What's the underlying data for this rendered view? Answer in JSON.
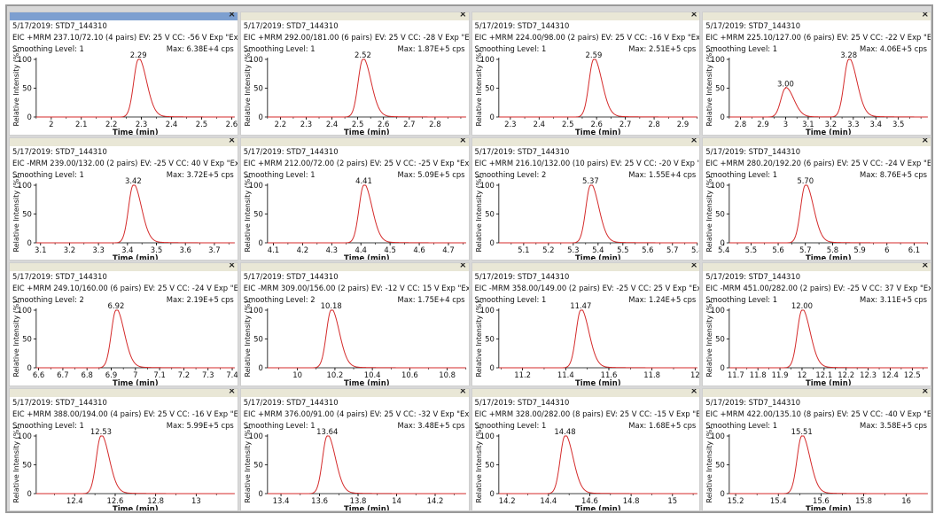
{
  "colors": {
    "trace": "#d42a2a",
    "active_titlebar": "#7d9fd0",
    "titlebar": "#e9e7d6",
    "axis": "#000000"
  },
  "close_icon": "×",
  "chart_data": [
    {
      "type": "line",
      "date_line": "5/17/2019: STD7_144310",
      "eic_line": "EIC +MRM 237.10/72.10 (4 pairs) EV: 25 V CC: -56 V Exp \"Experiment 5...",
      "smoothing": "Smoothing Level: 1",
      "max": "Max: 6.38E+4 cps",
      "xlabel": "Time (min)",
      "ylabel": "Relative Intensity (%)",
      "xlim": [
        1.95,
        2.61
      ],
      "ylim": [
        0,
        100
      ],
      "xticks": [
        "2",
        "2.1",
        "2.2",
        "2.3",
        "2.4",
        "2.5",
        "2.6"
      ],
      "yticks": [
        "0",
        "50",
        "100"
      ],
      "peaks": [
        {
          "rt": 2.29,
          "height": 100,
          "label": "2.29"
        }
      ],
      "active": true
    },
    {
      "type": "line",
      "date_line": "5/17/2019: STD7_144310",
      "eic_line": "EIC +MRM 292.00/181.00 (6 pairs) EV: 25 V CC: -28 V Exp \"Experiment...",
      "smoothing": "Smoothing Level: 1",
      "max": "Max: 1.87E+5 cps",
      "xlabel": "Time (min)",
      "ylabel": "Relative Intensity (%)",
      "xlim": [
        2.15,
        2.92
      ],
      "ylim": [
        0,
        100
      ],
      "xticks": [
        "2.2",
        "2.3",
        "2.4",
        "2.5",
        "2.6",
        "2.7",
        "2.8"
      ],
      "yticks": [
        "0",
        "50",
        "100"
      ],
      "peaks": [
        {
          "rt": 2.52,
          "height": 100,
          "label": "2.52"
        }
      ]
    },
    {
      "type": "line",
      "date_line": "5/17/2019: STD7_144310",
      "eic_line": "EIC +MRM 224.00/98.00 (2 pairs) EV: 25 V CC: -16 V Exp \"Experiment 8...",
      "smoothing": "Smoothing Level: 1",
      "max": "Max: 2.51E+5 cps",
      "xlabel": "Time (min)",
      "ylabel": "Relative Intensity (%)",
      "xlim": [
        2.26,
        2.95
      ],
      "ylim": [
        0,
        100
      ],
      "xticks": [
        "2.3",
        "2.4",
        "2.5",
        "2.6",
        "2.7",
        "2.8",
        "2.9"
      ],
      "yticks": [
        "0",
        "50",
        "100"
      ],
      "peaks": [
        {
          "rt": 2.59,
          "height": 100,
          "label": "2.59"
        }
      ]
    },
    {
      "type": "line",
      "date_line": "5/17/2019: STD7_144310",
      "eic_line": "EIC +MRM 225.10/127.00 (6 pairs) EV: 25 V CC: -22 V Exp \"Experiment...",
      "smoothing": "Smoothing Level: 1",
      "max": "Max: 4.06E+5 cps",
      "xlabel": "Time (min)",
      "ylabel": "Relative Intensity (%)",
      "xlim": [
        2.75,
        3.63
      ],
      "ylim": [
        0,
        100
      ],
      "xticks": [
        "2.8",
        "2.9",
        "3",
        "3.1",
        "3.2",
        "3.3",
        "3.4",
        "3.5"
      ],
      "yticks": [
        "0",
        "50",
        "100"
      ],
      "peaks": [
        {
          "rt": 3.0,
          "height": 50,
          "label": "3.00"
        },
        {
          "rt": 3.28,
          "height": 100,
          "label": "3.28"
        }
      ]
    },
    {
      "type": "line",
      "date_line": "5/17/2019: STD7_144310",
      "eic_line": "EIC -MRM 239.00/132.00 (2 pairs) EV: -25 V CC: 40 V Exp \"Experiment...",
      "smoothing": "Smoothing Level: 1",
      "max": "Max: 3.72E+5 cps",
      "xlabel": "Time (min)",
      "ylabel": "Relative Intensity (%)",
      "xlim": [
        3.085,
        3.77
      ],
      "ylim": [
        0,
        100
      ],
      "xticks": [
        "3.1",
        "3.2",
        "3.3",
        "3.4",
        "3.5",
        "3.6",
        "3.7"
      ],
      "yticks": [
        "0",
        "50",
        "100"
      ],
      "peaks": [
        {
          "rt": 3.42,
          "height": 100,
          "label": "3.42"
        }
      ]
    },
    {
      "type": "line",
      "date_line": "5/17/2019: STD7_144310",
      "eic_line": "EIC +MRM 212.00/72.00 (2 pairs) EV: 25 V CC: -25 V Exp \"Experiment 2...",
      "smoothing": "Smoothing Level: 1",
      "max": "Max: 5.09E+5 cps",
      "xlabel": "Time (min)",
      "ylabel": "Relative Intensity (%)",
      "xlim": [
        4.08,
        4.76
      ],
      "ylim": [
        0,
        100
      ],
      "xticks": [
        "4.1",
        "4.2",
        "4.3",
        "4.4",
        "4.5",
        "4.6",
        "4.7"
      ],
      "yticks": [
        "0",
        "50",
        "100"
      ],
      "peaks": [
        {
          "rt": 4.41,
          "height": 100,
          "label": "4.41"
        }
      ]
    },
    {
      "type": "line",
      "date_line": "5/17/2019: STD7_144310",
      "eic_line": "EIC +MRM 216.10/132.00 (10 pairs) EV: 25 V CC: -20 V Exp \"Experimen...",
      "smoothing": "Smoothing Level: 2",
      "max": "Max: 1.55E+4 cps",
      "xlabel": "Time (min)",
      "ylabel": "Relative Intensity (%)",
      "xlim": [
        5.0,
        5.8
      ],
      "ylim": [
        0,
        100
      ],
      "xticks": [
        "5.1",
        "5.2",
        "5.3",
        "5.4",
        "5.5",
        "5.6",
        "5.7",
        "5.8"
      ],
      "yticks": [
        "0",
        "50",
        "100"
      ],
      "peaks": [
        {
          "rt": 5.37,
          "height": 100,
          "label": "5.37"
        }
      ]
    },
    {
      "type": "line",
      "date_line": "5/17/2019: STD7_144310",
      "eic_line": "EIC +MRM 280.20/192.20 (6 pairs) EV: 25 V CC: -24 V Exp \"Experiment...",
      "smoothing": "Smoothing Level: 1",
      "max": "Max: 8.76E+5 cps",
      "xlabel": "Time (min)",
      "ylabel": "Relative Intensity (%)",
      "xlim": [
        5.42,
        6.15
      ],
      "ylim": [
        0,
        100
      ],
      "xticks": [
        "5.4",
        "5.5",
        "5.6",
        "5.7",
        "5.8",
        "5.9",
        "6",
        "6.1"
      ],
      "yticks": [
        "0",
        "50",
        "100"
      ],
      "peaks": [
        {
          "rt": 5.7,
          "height": 100,
          "label": "5.70"
        }
      ]
    },
    {
      "type": "line",
      "date_line": "5/17/2019: STD7_144310",
      "eic_line": "EIC +MRM 249.10/160.00 (6 pairs) EV: 25 V CC: -24 V Exp \"Experiment...",
      "smoothing": "Smoothing Level: 2",
      "max": "Max: 2.19E+5 cps",
      "xlabel": "Time (min)",
      "ylabel": "Relative Intensity (%)",
      "xlim": [
        6.59,
        7.41
      ],
      "ylim": [
        0,
        100
      ],
      "xticks": [
        "6.6",
        "6.7",
        "6.8",
        "6.9",
        "7",
        "7.1",
        "7.2",
        "7.3",
        "7.4"
      ],
      "yticks": [
        "0",
        "50",
        "100"
      ],
      "peaks": [
        {
          "rt": 6.92,
          "height": 100,
          "label": "6.92"
        }
      ]
    },
    {
      "type": "line",
      "date_line": "5/17/2019: STD7_144310",
      "eic_line": "EIC -MRM 309.00/156.00 (2 pairs) EV: -12 V CC: 15 V Exp \"Experiment...",
      "smoothing": "Smoothing Level: 2",
      "max": "Max: 1.75E+4 cps",
      "xlabel": "Time (min)",
      "ylabel": "Relative Intensity (%)",
      "xlim": [
        9.84,
        10.9
      ],
      "ylim": [
        0,
        100
      ],
      "xticks": [
        "10",
        "10.2",
        "10.4",
        "10.6",
        "10.8"
      ],
      "yticks": [
        "0",
        "50",
        "100"
      ],
      "peaks": [
        {
          "rt": 10.18,
          "height": 100,
          "label": "10.18"
        }
      ]
    },
    {
      "type": "line",
      "date_line": "5/17/2019: STD7_144310",
      "eic_line": "EIC -MRM 358.00/149.00 (2 pairs) EV: -25 V CC: 25 V Exp \"Experiment...",
      "smoothing": "Smoothing Level: 1",
      "max": "Max: 1.24E+5 cps",
      "xlabel": "Time (min)",
      "ylabel": "Relative Intensity (%)",
      "xlim": [
        11.09,
        12.01
      ],
      "ylim": [
        0,
        100
      ],
      "xticks": [
        "11.2",
        "11.4",
        "11.6",
        "11.8",
        "12"
      ],
      "yticks": [
        "0",
        "50",
        "100"
      ],
      "peaks": [
        {
          "rt": 11.47,
          "height": 100,
          "label": "11.47"
        }
      ]
    },
    {
      "type": "line",
      "date_line": "5/17/2019: STD7_144310",
      "eic_line": "EIC -MRM 451.00/282.00 (2 pairs) EV: -25 V CC: 37 V Exp \"Experiment...",
      "smoothing": "Smoothing Level: 1",
      "max": "Max: 3.11E+5 cps",
      "xlabel": "Time (min)",
      "ylabel": "Relative Intensity (%)",
      "xlim": [
        11.67,
        12.57
      ],
      "ylim": [
        0,
        100
      ],
      "xticks": [
        "11.7",
        "11.8",
        "11.9",
        "12",
        "12.1",
        "12.2",
        "12.3",
        "12.4",
        "12.5"
      ],
      "yticks": [
        "0",
        "50",
        "100"
      ],
      "peaks": [
        {
          "rt": 12.0,
          "height": 100,
          "label": "12.00"
        }
      ]
    },
    {
      "type": "line",
      "date_line": "5/17/2019: STD7_144310",
      "eic_line": "EIC +MRM 388.00/194.00 (4 pairs) EV: 25 V CC: -16 V Exp \"Experiment...",
      "smoothing": "Smoothing Level: 1",
      "max": "Max: 5.99E+5 cps",
      "xlabel": "Time (min)",
      "ylabel": "Relative Intensity (%)",
      "xlim": [
        12.21,
        13.19
      ],
      "ylim": [
        0,
        100
      ],
      "xticks": [
        "12.4",
        "12.6",
        "12.8",
        "13"
      ],
      "yticks": [
        "0",
        "50",
        "100"
      ],
      "peaks": [
        {
          "rt": 12.53,
          "height": 100,
          "label": "12.53"
        }
      ]
    },
    {
      "type": "line",
      "date_line": "5/17/2019: STD7_144310",
      "eic_line": "EIC +MRM 376.00/91.00 (4 pairs) EV: 25 V CC: -32 V Exp \"Experiment 7...",
      "smoothing": "Smoothing Level: 1",
      "max": "Max: 3.48E+5 cps",
      "xlabel": "Time (min)",
      "ylabel": "Relative Intensity (%)",
      "xlim": [
        13.33,
        14.36
      ],
      "ylim": [
        0,
        100
      ],
      "xticks": [
        "13.4",
        "13.6",
        "13.8",
        "14",
        "14.2"
      ],
      "yticks": [
        "0",
        "50",
        "100"
      ],
      "peaks": [
        {
          "rt": 13.64,
          "height": 100,
          "label": "13.64"
        }
      ]
    },
    {
      "type": "line",
      "date_line": "5/17/2019: STD7_144310",
      "eic_line": "EIC +MRM 328.00/282.00 (8 pairs) EV: 25 V CC: -15 V Exp \"Experiment...",
      "smoothing": "Smoothing Level: 1",
      "max": "Max: 1.68E+5 cps",
      "xlabel": "Time (min)",
      "ylabel": "Relative Intensity (%)",
      "xlim": [
        14.16,
        15.12
      ],
      "ylim": [
        0,
        100
      ],
      "xticks": [
        "14.2",
        "14.4",
        "14.6",
        "14.8",
        "15"
      ],
      "yticks": [
        "0",
        "50",
        "100"
      ],
      "peaks": [
        {
          "rt": 14.48,
          "height": 100,
          "label": "14.48"
        }
      ]
    },
    {
      "type": "line",
      "date_line": "5/17/2019: STD7_144310",
      "eic_line": "EIC +MRM 422.00/135.10 (8 pairs) EV: 25 V CC: -40 V Exp \"Experiment...",
      "smoothing": "Smoothing Level: 1",
      "max": "Max: 3.58E+5 cps",
      "xlabel": "Time (min)",
      "ylabel": "Relative Intensity (%)",
      "xlim": [
        15.17,
        16.1
      ],
      "ylim": [
        0,
        100
      ],
      "xticks": [
        "15.2",
        "15.4",
        "15.6",
        "15.8",
        "16"
      ],
      "yticks": [
        "0",
        "50",
        "100"
      ],
      "peaks": [
        {
          "rt": 15.51,
          "height": 100,
          "label": "15.51"
        }
      ]
    }
  ]
}
